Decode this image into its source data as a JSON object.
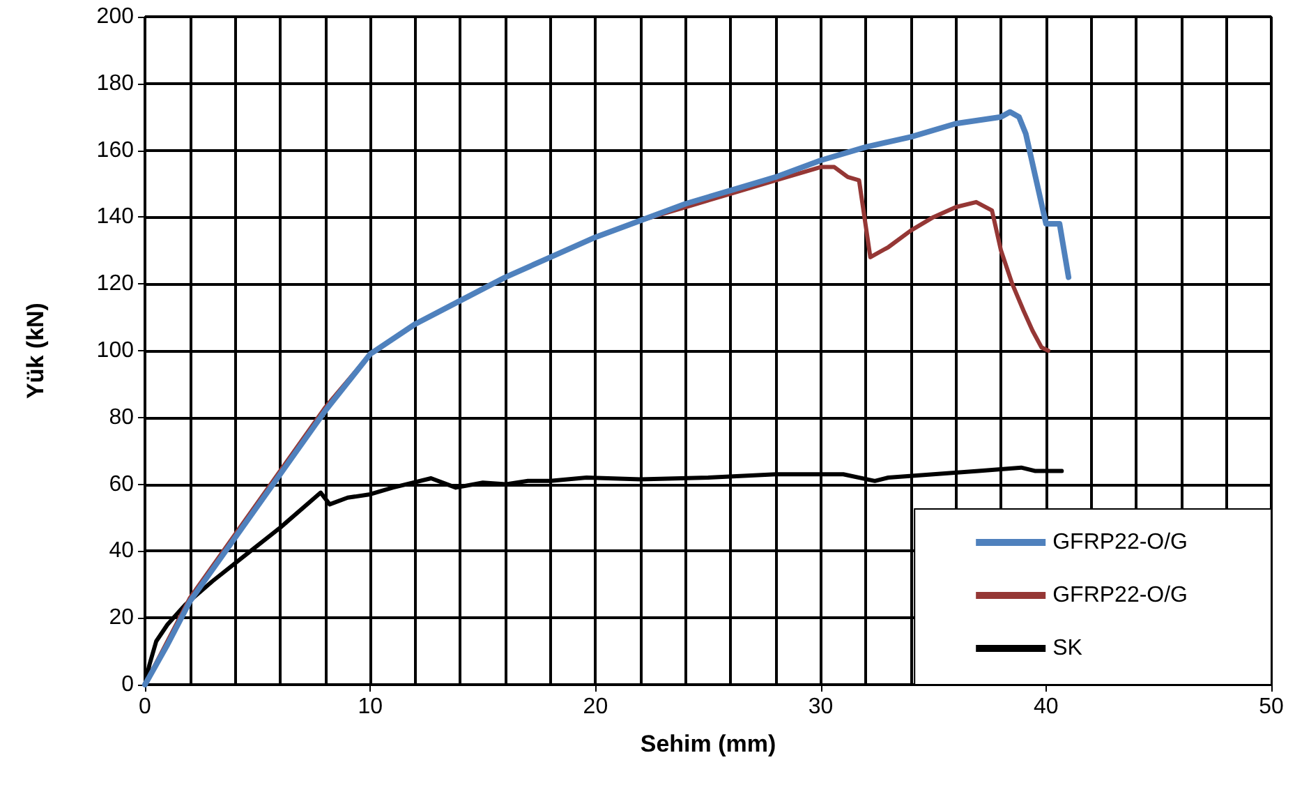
{
  "chart_data": {
    "type": "line",
    "xlabel": "Sehim (mm)",
    "ylabel": "Yük (kN)",
    "xlim": [
      0,
      50
    ],
    "xticks": [
      0,
      10,
      20,
      30,
      40,
      50
    ],
    "ylim": [
      0,
      200
    ],
    "yticks": [
      0,
      20,
      40,
      60,
      80,
      100,
      120,
      140,
      160,
      180,
      200
    ],
    "grid": true,
    "legend": "bottom right",
    "marker": "none",
    "line_style": "solid",
    "series": [
      {
        "name": "GFRP22-O/G",
        "color": "#4f81bd",
        "x": [
          0,
          1,
          2,
          4,
          6,
          8,
          10,
          12,
          14,
          16,
          18,
          20,
          22,
          24,
          26,
          28,
          30,
          32,
          34,
          36,
          38,
          38.4,
          38.8,
          39.1,
          40,
          40.6,
          41
        ],
        "values": [
          0,
          12,
          25,
          44,
          63,
          82,
          99,
          108,
          115,
          122,
          128,
          134,
          139,
          144,
          148,
          152,
          157,
          161,
          164,
          168,
          170,
          171.5,
          170,
          165,
          138,
          138,
          122
        ]
      },
      {
        "name": "GFRP22-O/G",
        "color": "#953735",
        "x": [
          0,
          1,
          2,
          4,
          6,
          8,
          10,
          12,
          14,
          16,
          18,
          20,
          22,
          24,
          26,
          28,
          30,
          30.6,
          31.2,
          31.7,
          32.2,
          33,
          34,
          35,
          36,
          36.9,
          37.6,
          38,
          38.5,
          39,
          39.4,
          39.8,
          40.1
        ],
        "values": [
          0,
          13,
          26,
          45,
          64,
          83,
          99,
          108,
          115,
          122,
          128,
          134,
          139,
          143,
          147,
          151,
          155,
          155,
          152,
          151,
          128,
          131,
          136,
          140,
          143,
          144.5,
          142,
          130,
          120,
          112,
          106,
          101,
          100
        ]
      },
      {
        "name": "SK",
        "color": "#000000",
        "x": [
          0,
          0.2,
          0.5,
          1,
          1.8,
          3,
          4.5,
          6,
          7.8,
          8.2,
          9,
          10,
          11,
          12.7,
          13.8,
          15,
          16,
          17,
          18,
          19.6,
          22,
          25,
          28,
          30,
          31,
          32.4,
          33,
          35,
          37,
          38.9,
          39.5,
          40.7
        ],
        "values": [
          0,
          6,
          13,
          18,
          24,
          31,
          39,
          47,
          57.5,
          54,
          56,
          57,
          59,
          61.8,
          59,
          60.5,
          60,
          61,
          61,
          62,
          61.5,
          62,
          63,
          63,
          63,
          61,
          62,
          63,
          64,
          65,
          64,
          64
        ]
      }
    ]
  }
}
